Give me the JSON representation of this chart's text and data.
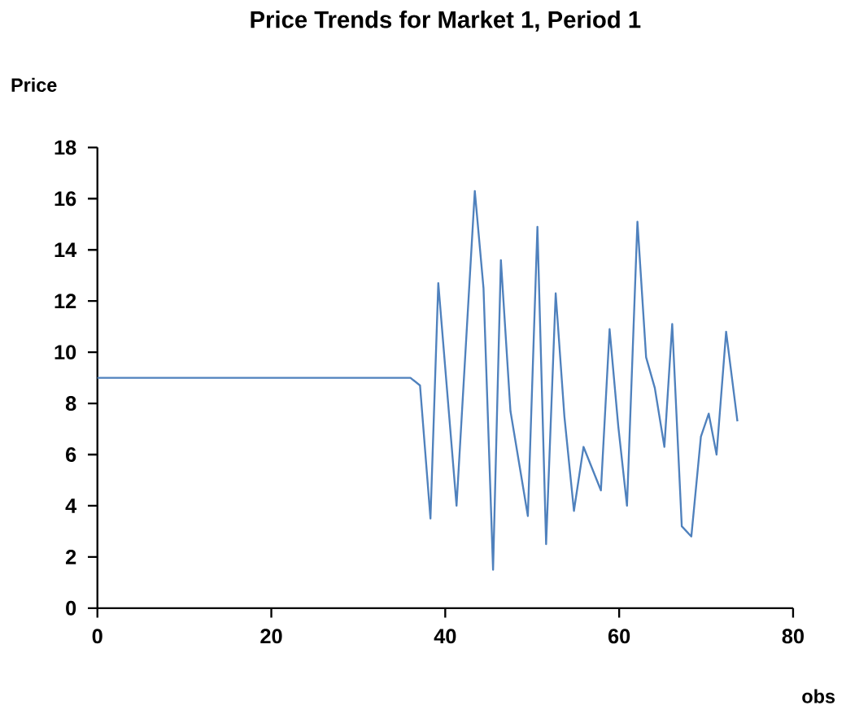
{
  "chart_data": {
    "type": "line",
    "title": "Price Trends for Market 1, Period 1",
    "xlabel": "obs",
    "ylabel": "Price",
    "x": [
      0,
      36,
      37.1,
      38.3,
      39.2,
      41.3,
      43.4,
      44.4,
      45.5,
      46.4,
      47.5,
      49.5,
      50.6,
      51.6,
      52.7,
      53.7,
      54.8,
      55.9,
      57.9,
      58.9,
      59.9,
      60.9,
      62.1,
      63.1,
      64.1,
      65.2,
      66.1,
      67.2,
      68.3,
      69.4,
      70.3,
      71.2,
      72.3,
      73.6
    ],
    "series": [
      {
        "color": "#4f81bd",
        "values": [
          9,
          9,
          8.7,
          3.5,
          12.7,
          4.0,
          16.3,
          12.5,
          1.5,
          13.6,
          7.7,
          3.6,
          14.9,
          2.5,
          12.3,
          7.5,
          3.8,
          6.3,
          4.6,
          10.9,
          7.1,
          4.0,
          15.1,
          9.8,
          8.6,
          6.3,
          11.1,
          3.2,
          2.8,
          6.7,
          7.6,
          6.0,
          10.8,
          7.3
        ]
      }
    ],
    "xlim": [
      0,
      80
    ],
    "xticks": [
      0,
      20,
      40,
      60,
      80
    ],
    "ylim": [
      0,
      18
    ],
    "yticks": [
      0,
      2,
      4,
      6,
      8,
      10,
      12,
      14,
      16,
      18
    ],
    "grid": false,
    "marker": "none",
    "line_style": "solid"
  }
}
